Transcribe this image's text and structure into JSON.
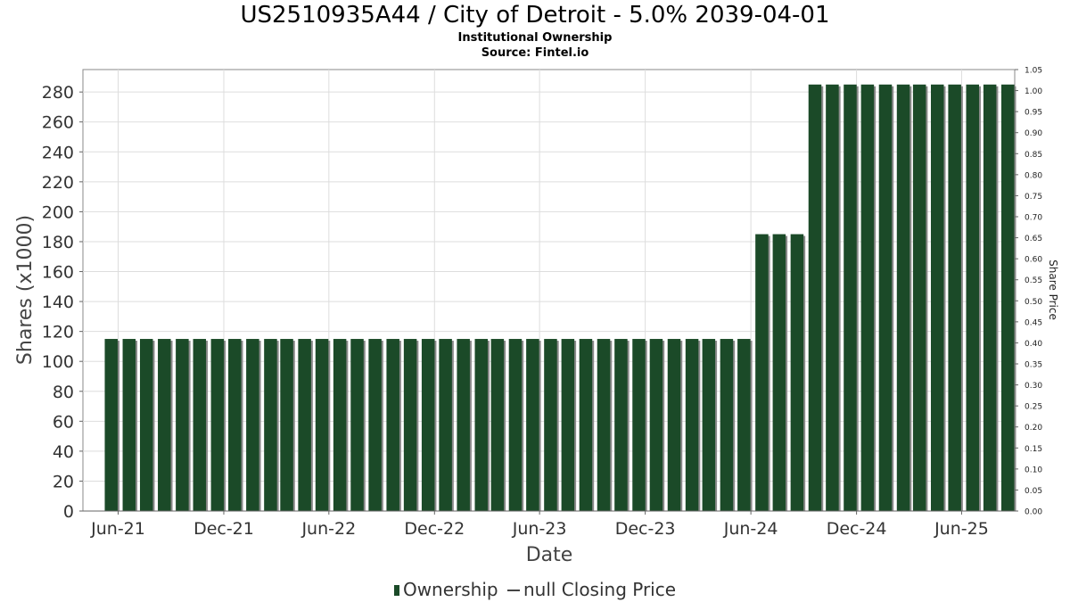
{
  "header": {
    "title": "US2510935A44 / City of Detroit - 5.0% 2039-04-01",
    "subtitle": "Institutional Ownership",
    "source": "Source: Fintel.io"
  },
  "legend": {
    "ownership": "Ownership",
    "price": "null Closing Price"
  },
  "colors": {
    "bar": "#1b4a28",
    "bar_shadow": "#8a8a8a",
    "grid": "#dddddd",
    "axis": "#888888"
  },
  "chart_data": {
    "type": "bar",
    "xlabel": "Date",
    "ylabel": "Shares (x1000)",
    "y2label": "Share Price",
    "ylim": [
      0,
      295
    ],
    "y2lim": [
      0,
      1.05
    ],
    "xlim": [
      "2021-04-01",
      "2025-09-01"
    ],
    "y_ticks": [
      "0",
      "20",
      "40",
      "60",
      "80",
      "100",
      "120",
      "140",
      "160",
      "180",
      "200",
      "220",
      "240",
      "260",
      "280"
    ],
    "y2_ticks": [
      "0.00",
      "0.05",
      "0.10",
      "0.15",
      "0.20",
      "0.25",
      "0.30",
      "0.35",
      "0.40",
      "0.45",
      "0.50",
      "0.55",
      "0.60",
      "0.65",
      "0.70",
      "0.75",
      "0.80",
      "0.85",
      "0.90",
      "0.95",
      "1.00",
      "1.05"
    ],
    "x_ticks": [
      {
        "label": "Jun-21",
        "date": "2021-06-01"
      },
      {
        "label": "Dec-21",
        "date": "2021-12-01"
      },
      {
        "label": "Jun-22",
        "date": "2022-06-01"
      },
      {
        "label": "Dec-22",
        "date": "2022-12-01"
      },
      {
        "label": "Jun-23",
        "date": "2023-06-01"
      },
      {
        "label": "Dec-23",
        "date": "2023-12-01"
      },
      {
        "label": "Jun-24",
        "date": "2024-06-01"
      },
      {
        "label": "Dec-24",
        "date": "2024-12-01"
      },
      {
        "label": "Jun-25",
        "date": "2025-06-01"
      }
    ],
    "grid": true,
    "legend_position": "bottom",
    "series": [
      {
        "name": "Ownership",
        "points": [
          {
            "date": "2021-05-20",
            "value": 115
          },
          {
            "date": "2021-06-20",
            "value": 115
          },
          {
            "date": "2021-07-20",
            "value": 115
          },
          {
            "date": "2021-08-20",
            "value": 115
          },
          {
            "date": "2021-09-20",
            "value": 115
          },
          {
            "date": "2021-10-20",
            "value": 115
          },
          {
            "date": "2021-11-20",
            "value": 115
          },
          {
            "date": "2021-12-20",
            "value": 115
          },
          {
            "date": "2022-01-20",
            "value": 115
          },
          {
            "date": "2022-02-20",
            "value": 115
          },
          {
            "date": "2022-03-20",
            "value": 115
          },
          {
            "date": "2022-04-20",
            "value": 115
          },
          {
            "date": "2022-05-20",
            "value": 115
          },
          {
            "date": "2022-06-20",
            "value": 115
          },
          {
            "date": "2022-07-20",
            "value": 115
          },
          {
            "date": "2022-08-20",
            "value": 115
          },
          {
            "date": "2022-09-20",
            "value": 115
          },
          {
            "date": "2022-10-20",
            "value": 115
          },
          {
            "date": "2022-11-20",
            "value": 115
          },
          {
            "date": "2022-12-20",
            "value": 115
          },
          {
            "date": "2023-01-20",
            "value": 115
          },
          {
            "date": "2023-02-20",
            "value": 115
          },
          {
            "date": "2023-03-20",
            "value": 115
          },
          {
            "date": "2023-04-20",
            "value": 115
          },
          {
            "date": "2023-05-20",
            "value": 115
          },
          {
            "date": "2023-06-20",
            "value": 115
          },
          {
            "date": "2023-07-20",
            "value": 115
          },
          {
            "date": "2023-08-20",
            "value": 115
          },
          {
            "date": "2023-09-20",
            "value": 115
          },
          {
            "date": "2023-10-20",
            "value": 115
          },
          {
            "date": "2023-11-20",
            "value": 115
          },
          {
            "date": "2023-12-20",
            "value": 115
          },
          {
            "date": "2024-01-20",
            "value": 115
          },
          {
            "date": "2024-02-20",
            "value": 115
          },
          {
            "date": "2024-03-20",
            "value": 115
          },
          {
            "date": "2024-04-20",
            "value": 115
          },
          {
            "date": "2024-05-20",
            "value": 115
          },
          {
            "date": "2024-06-20",
            "value": 185
          },
          {
            "date": "2024-07-20",
            "value": 185
          },
          {
            "date": "2024-08-20",
            "value": 185
          },
          {
            "date": "2024-09-20",
            "value": 285
          },
          {
            "date": "2024-10-20",
            "value": 285
          },
          {
            "date": "2024-11-20",
            "value": 285
          },
          {
            "date": "2024-12-20",
            "value": 285
          },
          {
            "date": "2025-01-20",
            "value": 285
          },
          {
            "date": "2025-02-20",
            "value": 285
          },
          {
            "date": "2025-03-20",
            "value": 285
          },
          {
            "date": "2025-04-20",
            "value": 285
          },
          {
            "date": "2025-05-20",
            "value": 285
          },
          {
            "date": "2025-06-20",
            "value": 285
          },
          {
            "date": "2025-07-20",
            "value": 285
          },
          {
            "date": "2025-08-20",
            "value": 285
          }
        ]
      }
    ]
  }
}
